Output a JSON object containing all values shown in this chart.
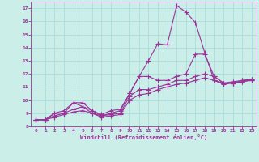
{
  "background_color": "#cceee8",
  "grid_color": "#aadddd",
  "line_color": "#993399",
  "marker_style": "+",
  "marker_size": 4,
  "xlim": [
    -0.5,
    23.5
  ],
  "ylim": [
    8,
    17.5
  ],
  "xlabel": "Windchill (Refroidissement éolien,°C)",
  "xticks": [
    0,
    1,
    2,
    3,
    4,
    5,
    6,
    7,
    8,
    9,
    10,
    11,
    12,
    13,
    14,
    15,
    16,
    17,
    18,
    19,
    20,
    21,
    22,
    23
  ],
  "yticks": [
    8,
    9,
    10,
    11,
    12,
    13,
    14,
    15,
    16,
    17
  ],
  "curve1_x": [
    0,
    1,
    2,
    3,
    4,
    5,
    6,
    7,
    8,
    9,
    10,
    11,
    12,
    13,
    14,
    15,
    16,
    17,
    18,
    19,
    20,
    21,
    22,
    23
  ],
  "curve1_y": [
    8.5,
    8.5,
    9.0,
    9.2,
    9.8,
    9.5,
    9.2,
    8.9,
    9.2,
    9.3,
    10.5,
    11.8,
    13.0,
    14.3,
    14.2,
    17.2,
    16.7,
    15.9,
    13.6,
    11.5,
    11.3,
    11.4,
    11.5,
    11.5
  ],
  "curve2_x": [
    0,
    1,
    2,
    3,
    4,
    5,
    6,
    7,
    8,
    9,
    10,
    11,
    12,
    13,
    14,
    15,
    16,
    17,
    18,
    19,
    20,
    21,
    22,
    23
  ],
  "curve2_y": [
    8.5,
    8.5,
    9.0,
    9.0,
    9.8,
    9.8,
    9.2,
    8.8,
    9.0,
    9.2,
    10.5,
    11.8,
    11.8,
    11.5,
    11.5,
    11.8,
    12.0,
    13.5,
    13.5,
    11.8,
    11.3,
    11.3,
    11.5,
    11.6
  ],
  "curve3_x": [
    0,
    1,
    2,
    3,
    4,
    5,
    6,
    7,
    8,
    9,
    10,
    11,
    12,
    13,
    14,
    15,
    16,
    17,
    18,
    19,
    20,
    21,
    22,
    23
  ],
  "curve3_y": [
    8.5,
    8.5,
    8.8,
    9.0,
    9.3,
    9.5,
    9.0,
    8.8,
    8.9,
    9.0,
    10.3,
    10.8,
    10.8,
    11.0,
    11.2,
    11.5,
    11.5,
    11.8,
    12.0,
    11.8,
    11.3,
    11.3,
    11.4,
    11.6
  ],
  "curve4_x": [
    0,
    1,
    2,
    3,
    4,
    5,
    6,
    7,
    8,
    9,
    10,
    11,
    12,
    13,
    14,
    15,
    16,
    17,
    18,
    19,
    20,
    21,
    22,
    23
  ],
  "curve4_y": [
    8.5,
    8.5,
    8.7,
    8.9,
    9.1,
    9.2,
    9.0,
    8.7,
    8.8,
    8.9,
    10.0,
    10.4,
    10.5,
    10.8,
    11.0,
    11.2,
    11.3,
    11.5,
    11.7,
    11.5,
    11.2,
    11.3,
    11.4,
    11.5
  ]
}
